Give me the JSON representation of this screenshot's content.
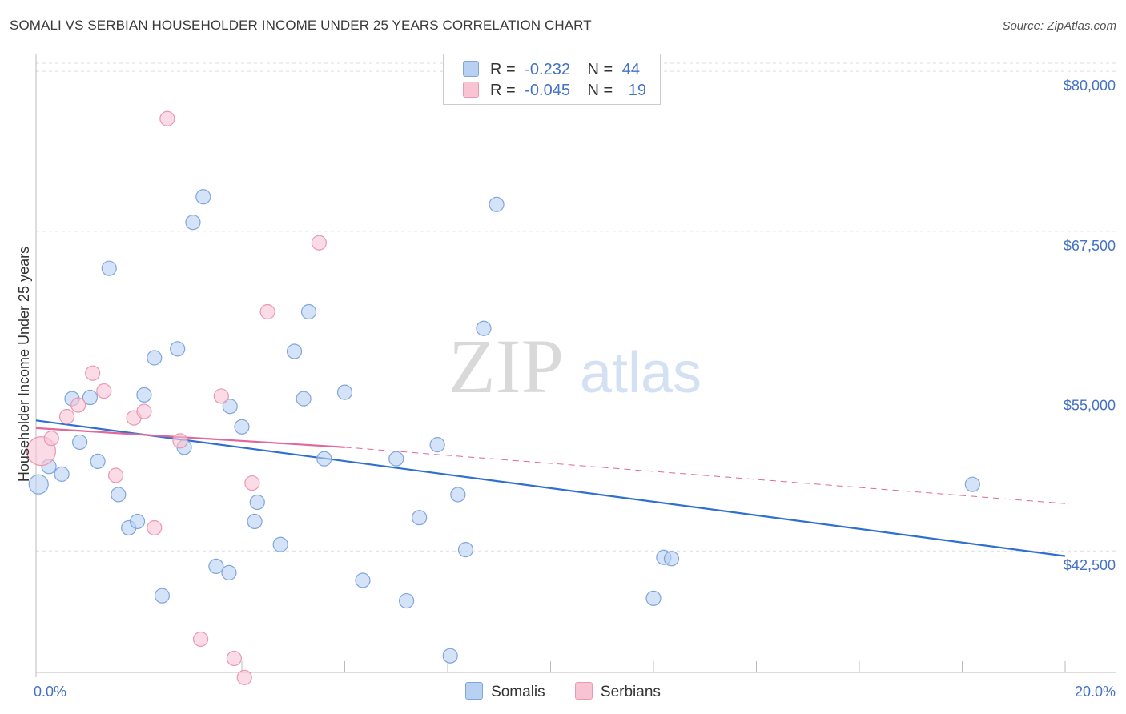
{
  "header": {
    "title": "SOMALI VS SERBIAN HOUSEHOLDER INCOME UNDER 25 YEARS CORRELATION CHART",
    "source": "Source: ZipAtlas.com"
  },
  "watermark": {
    "zip": "ZIP",
    "atlas": "atlas"
  },
  "legend": {
    "rows": [
      {
        "r_label": "R =",
        "r_value": "-0.232",
        "n_label": "N =",
        "n_value": "44"
      },
      {
        "r_label": "R =",
        "r_value": "-0.045",
        "n_label": "N =",
        "n_value": "19"
      }
    ]
  },
  "series_labels": {
    "somalis": "Somalis",
    "serbians": "Serbians"
  },
  "colors": {
    "somalis_fill": "#b8d0f2",
    "somalis_stroke": "#7fa6dc",
    "somalis_line": "#2e6fd0",
    "serbians_fill": "#f8c3d3",
    "serbians_stroke": "#e999b2",
    "serbians_line": "#e0689a",
    "tick_text": "#4472c4",
    "grid": "#dddddd"
  },
  "chart_data": {
    "type": "scatter",
    "xlabel": "",
    "ylabel": "Householder Income Under 25 years",
    "xlim": [
      0,
      20
    ],
    "ylim": [
      33000,
      81200
    ],
    "x_tick_labels": [
      {
        "value": 0,
        "label": "0.0%"
      },
      {
        "value": 20,
        "label": "20.0%"
      }
    ],
    "y_ticks": [
      {
        "value": 42500,
        "label": "$42,500"
      },
      {
        "value": 55000,
        "label": "$55,000"
      },
      {
        "value": 67500,
        "label": "$67,500"
      },
      {
        "value": 80000,
        "label": "$80,000"
      }
    ],
    "grid": true,
    "legend_position": "top-center",
    "series": [
      {
        "name": "Somalis",
        "r": -0.232,
        "n": 44,
        "points": [
          [
            0.05,
            47700
          ],
          [
            0.25,
            49100
          ],
          [
            0.5,
            48500
          ],
          [
            0.7,
            54400
          ],
          [
            0.85,
            51000
          ],
          [
            1.05,
            54500
          ],
          [
            1.2,
            49500
          ],
          [
            1.42,
            64600
          ],
          [
            1.6,
            46900
          ],
          [
            1.8,
            44300
          ],
          [
            1.97,
            44800
          ],
          [
            2.1,
            54700
          ],
          [
            2.3,
            57600
          ],
          [
            2.45,
            39000
          ],
          [
            2.75,
            58300
          ],
          [
            2.88,
            50600
          ],
          [
            3.05,
            68200
          ],
          [
            3.25,
            70200
          ],
          [
            3.5,
            41300
          ],
          [
            3.75,
            40800
          ],
          [
            3.77,
            53800
          ],
          [
            4.0,
            52200
          ],
          [
            4.25,
            44800
          ],
          [
            4.3,
            46300
          ],
          [
            4.75,
            43000
          ],
          [
            5.02,
            58100
          ],
          [
            5.2,
            54400
          ],
          [
            5.3,
            61200
          ],
          [
            5.6,
            49700
          ],
          [
            6.0,
            54900
          ],
          [
            6.35,
            40200
          ],
          [
            7.0,
            49700
          ],
          [
            7.2,
            38600
          ],
          [
            7.45,
            45100
          ],
          [
            7.8,
            50800
          ],
          [
            8.05,
            34300
          ],
          [
            8.2,
            46900
          ],
          [
            8.35,
            42600
          ],
          [
            8.7,
            59900
          ],
          [
            8.95,
            69600
          ],
          [
            12.0,
            38800
          ],
          [
            12.2,
            42000
          ],
          [
            12.35,
            41900
          ],
          [
            18.2,
            47700
          ]
        ]
      },
      {
        "name": "Serbians",
        "r": -0.045,
        "n": 19,
        "points": [
          [
            0.1,
            50300
          ],
          [
            0.3,
            51300
          ],
          [
            0.6,
            53000
          ],
          [
            0.82,
            53900
          ],
          [
            1.1,
            56400
          ],
          [
            1.32,
            55000
          ],
          [
            1.55,
            48400
          ],
          [
            1.9,
            52900
          ],
          [
            2.1,
            53400
          ],
          [
            2.3,
            44300
          ],
          [
            2.55,
            76300
          ],
          [
            2.8,
            51100
          ],
          [
            3.2,
            35600
          ],
          [
            3.6,
            54600
          ],
          [
            3.85,
            34100
          ],
          [
            4.05,
            32600
          ],
          [
            4.2,
            47800
          ],
          [
            4.5,
            61200
          ],
          [
            5.5,
            66600
          ]
        ]
      }
    ],
    "trendlines": [
      {
        "series": "Somalis",
        "from": [
          0,
          52700
        ],
        "to": [
          20,
          42100
        ],
        "style": "solid"
      },
      {
        "series": "Serbians",
        "from": [
          0,
          52100
        ],
        "to": [
          6.0,
          50600
        ],
        "style": "solid"
      },
      {
        "series": "Serbians",
        "from": [
          6.0,
          50600
        ],
        "to": [
          20,
          46200
        ],
        "style": "dashed"
      }
    ]
  }
}
